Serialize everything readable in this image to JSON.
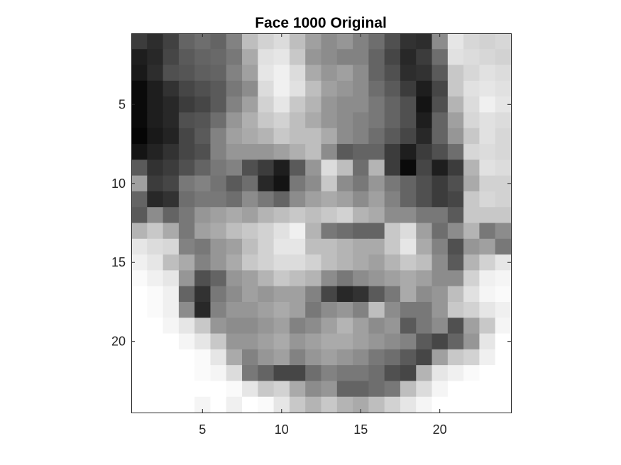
{
  "chart_data": {
    "type": "heatmap",
    "title": "Face 1000 Original",
    "xlabel": "",
    "ylabel": "",
    "colormap": "gray",
    "xlim": [
      0.5,
      24.5
    ],
    "ylim": [
      0.5,
      24.5
    ],
    "y_direction": "reverse",
    "x_ticks": [
      5,
      10,
      15,
      20
    ],
    "y_ticks": [
      5,
      10,
      15,
      20
    ],
    "x_tick_labels": [
      "5",
      "10",
      "15",
      "20"
    ],
    "y_tick_labels": [
      "5",
      "10",
      "15",
      "20"
    ],
    "grid": false,
    "value_range": [
      0,
      255
    ],
    "values": [
      [
        60,
        45,
        65,
        100,
        110,
        100,
        130,
        190,
        210,
        220,
        190,
        160,
        140,
        150,
        130,
        110,
        80,
        50,
        45,
        140,
        230,
        215,
        210,
        215
      ],
      [
        30,
        40,
        70,
        90,
        100,
        105,
        120,
        170,
        225,
        230,
        200,
        150,
        140,
        130,
        130,
        100,
        70,
        40,
        60,
        110,
        225,
        220,
        215,
        210
      ],
      [
        25,
        45,
        80,
        85,
        95,
        100,
        130,
        160,
        230,
        240,
        220,
        170,
        150,
        160,
        140,
        100,
        80,
        45,
        50,
        90,
        200,
        215,
        225,
        220
      ],
      [
        10,
        30,
        50,
        70,
        80,
        90,
        120,
        140,
        220,
        240,
        225,
        190,
        160,
        150,
        140,
        110,
        90,
        60,
        30,
        70,
        200,
        225,
        230,
        225
      ],
      [
        10,
        30,
        40,
        60,
        70,
        90,
        130,
        160,
        210,
        230,
        200,
        180,
        150,
        140,
        140,
        120,
        100,
        80,
        20,
        80,
        180,
        220,
        240,
        230
      ],
      [
        10,
        30,
        40,
        80,
        85,
        110,
        150,
        175,
        200,
        210,
        190,
        170,
        150,
        140,
        130,
        120,
        100,
        80,
        30,
        100,
        160,
        215,
        225,
        220
      ],
      [
        5,
        25,
        35,
        70,
        90,
        130,
        160,
        170,
        180,
        200,
        190,
        190,
        170,
        140,
        130,
        110,
        90,
        70,
        40,
        100,
        150,
        200,
        225,
        215
      ],
      [
        20,
        35,
        50,
        70,
        80,
        130,
        150,
        150,
        150,
        160,
        175,
        190,
        140,
        90,
        100,
        100,
        60,
        30,
        60,
        80,
        110,
        215,
        220,
        215
      ],
      [
        90,
        50,
        60,
        80,
        100,
        120,
        130,
        80,
        60,
        30,
        90,
        150,
        220,
        190,
        110,
        180,
        60,
        10,
        70,
        30,
        60,
        180,
        225,
        220
      ],
      [
        160,
        60,
        70,
        120,
        130,
        115,
        90,
        110,
        40,
        20,
        120,
        140,
        200,
        140,
        120,
        150,
        120,
        100,
        80,
        60,
        80,
        170,
        210,
        210
      ],
      [
        100,
        40,
        50,
        110,
        120,
        120,
        110,
        140,
        120,
        100,
        140,
        160,
        170,
        160,
        140,
        160,
        130,
        100,
        80,
        60,
        70,
        200,
        215,
        210
      ],
      [
        90,
        140,
        100,
        120,
        150,
        160,
        170,
        160,
        180,
        190,
        200,
        190,
        200,
        210,
        180,
        170,
        140,
        140,
        120,
        120,
        90,
        200,
        200,
        200
      ],
      [
        180,
        200,
        170,
        120,
        160,
        170,
        190,
        200,
        210,
        225,
        240,
        180,
        120,
        110,
        100,
        100,
        200,
        220,
        160,
        110,
        140,
        180,
        120,
        140
      ],
      [
        230,
        220,
        215,
        130,
        120,
        150,
        160,
        190,
        210,
        230,
        230,
        190,
        190,
        180,
        170,
        170,
        200,
        230,
        170,
        130,
        80,
        150,
        160,
        120
      ],
      [
        240,
        230,
        190,
        170,
        130,
        150,
        170,
        200,
        210,
        220,
        220,
        210,
        190,
        180,
        170,
        160,
        180,
        200,
        190,
        140,
        90,
        180,
        210,
        230
      ],
      [
        250,
        240,
        230,
        150,
        80,
        100,
        150,
        160,
        180,
        200,
        190,
        180,
        140,
        120,
        140,
        150,
        160,
        170,
        160,
        140,
        140,
        210,
        240,
        245
      ],
      [
        255,
        250,
        240,
        100,
        50,
        120,
        140,
        160,
        150,
        160,
        160,
        130,
        70,
        40,
        50,
        90,
        120,
        170,
        140,
        150,
        190,
        225,
        245,
        250
      ],
      [
        255,
        250,
        240,
        140,
        40,
        130,
        150,
        150,
        160,
        170,
        160,
        120,
        140,
        150,
        130,
        190,
        140,
        120,
        120,
        150,
        200,
        210,
        230,
        240
      ],
      [
        255,
        255,
        245,
        230,
        200,
        150,
        140,
        140,
        150,
        160,
        130,
        140,
        160,
        180,
        160,
        140,
        150,
        90,
        120,
        140,
        80,
        160,
        200,
        245
      ],
      [
        255,
        255,
        255,
        245,
        230,
        200,
        150,
        150,
        160,
        170,
        150,
        160,
        170,
        170,
        160,
        150,
        140,
        130,
        90,
        70,
        100,
        150,
        230,
        255
      ],
      [
        255,
        255,
        255,
        255,
        250,
        230,
        170,
        130,
        150,
        160,
        130,
        150,
        160,
        150,
        140,
        120,
        110,
        90,
        70,
        160,
        200,
        210,
        240,
        255
      ],
      [
        255,
        255,
        255,
        255,
        250,
        245,
        220,
        120,
        100,
        70,
        70,
        110,
        130,
        120,
        120,
        110,
        80,
        70,
        180,
        230,
        240,
        250,
        255,
        255
      ],
      [
        255,
        255,
        255,
        255,
        255,
        255,
        250,
        230,
        200,
        210,
        170,
        140,
        150,
        100,
        100,
        110,
        120,
        190,
        220,
        245,
        255,
        255,
        255,
        255
      ],
      [
        255,
        255,
        255,
        255,
        245,
        255,
        240,
        255,
        250,
        230,
        200,
        180,
        200,
        180,
        170,
        190,
        210,
        230,
        245,
        255,
        255,
        255,
        255,
        255
      ]
    ]
  }
}
